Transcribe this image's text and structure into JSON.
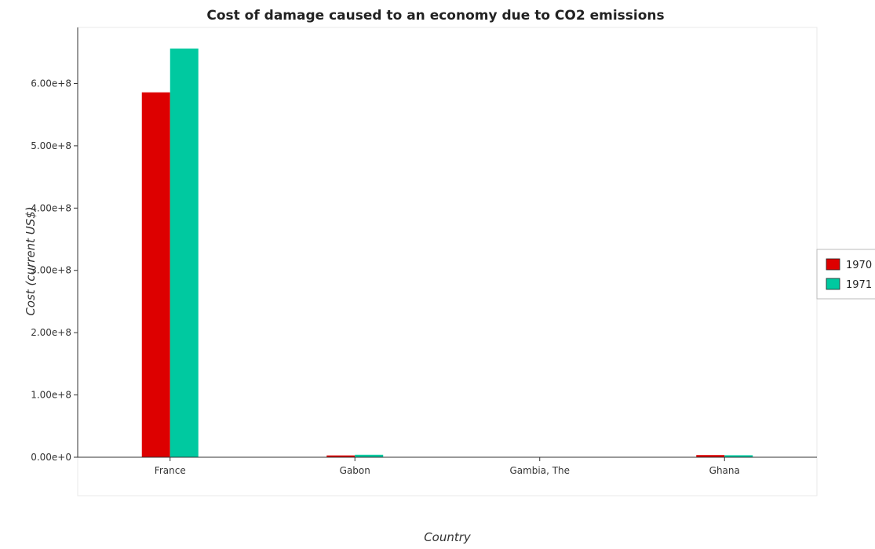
{
  "chart_data": {
    "type": "bar",
    "title": "Cost of damage caused to an economy due to CO2 emissions",
    "xlabel": "Country",
    "ylabel": "Cost (current US$)",
    "categories": [
      "France",
      "Gabon",
      "Gambia, The",
      "Ghana"
    ],
    "series": [
      {
        "name": "1970",
        "color": "#dd0000",
        "values": [
          585800000,
          2900000,
          150000,
          3500000
        ]
      },
      {
        "name": "1971",
        "color": "#00c9a0",
        "values": [
          656200000,
          4000000,
          170000,
          3200000
        ]
      }
    ],
    "ylim": [
      0,
      690000000
    ],
    "yticks": [
      {
        "value": 0,
        "label": "0.00e+0"
      },
      {
        "value": 100000000,
        "label": "1.00e+8"
      },
      {
        "value": 200000000,
        "label": "2.00e+8"
      },
      {
        "value": 300000000,
        "label": "3.00e+8"
      },
      {
        "value": 400000000,
        "label": "4.00e+8"
      },
      {
        "value": 500000000,
        "label": "5.00e+8"
      },
      {
        "value": 600000000,
        "label": "6.00e+8"
      }
    ],
    "grid": false,
    "legend_position": "right"
  }
}
